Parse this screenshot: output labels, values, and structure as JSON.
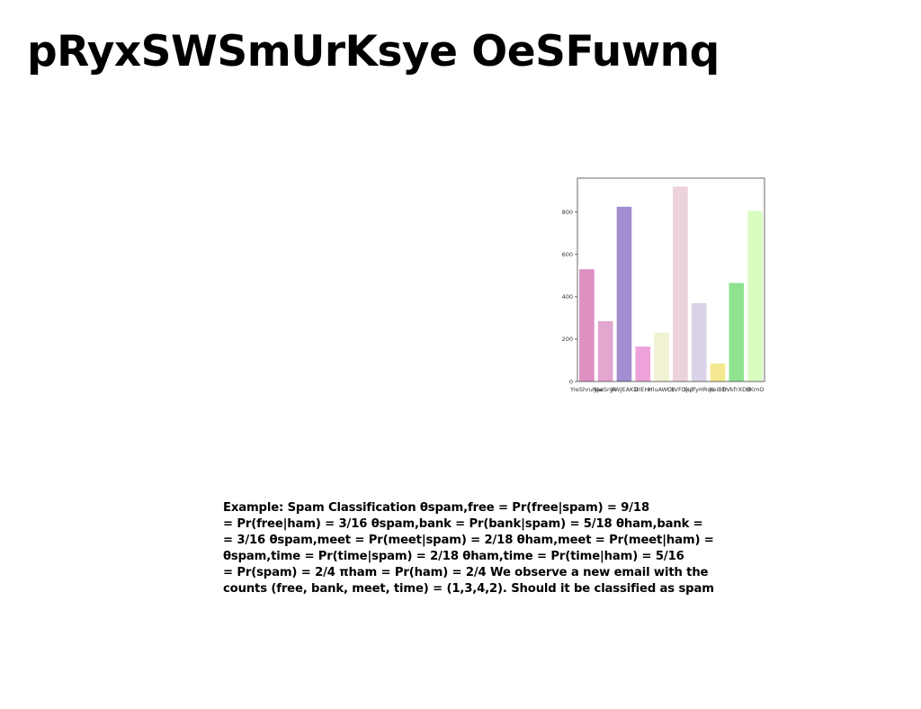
{
  "page": {
    "title": "pRyxSWSmUrKsye OeSFuwnq",
    "body_lines": [
      "Example: Spam Classification θspam,free = Pr(free|spam) = 9/18",
      "= Pr(free|ham) = 3/16 θspam,bank = Pr(bank|spam) = 5/18 θham,bank =",
      "= 3/16 θspam,meet = Pr(meet|spam) = 2/18 θham,meet = Pr(meet|ham) =",
      "θspam,time = Pr(time|spam) = 2/18 θham,time = Pr(time|ham) = 5/16",
      "= Pr(spam) = 2/4 πham = Pr(ham) = 2/4 We observe a new email with the",
      "counts (free, bank, meet, time) = (1,3,4,2). Should it be classified as spam"
    ]
  },
  "chart_data": {
    "type": "bar",
    "categories": [
      "YIeShruNjw",
      "JaeSrgk",
      "XWJEAKD",
      "DIEHr",
      "HluAWCk",
      "OtVFDjuf",
      "tkpfyHRqz",
      "XeIBD",
      "bVkfrXDd",
      "SKmO"
    ],
    "values": [
      530,
      285,
      825,
      165,
      230,
      920,
      370,
      85,
      465,
      805
    ],
    "colors": [
      "#dd8fc2",
      "#e3a6cf",
      "#a18dcf",
      "#eda3d9",
      "#f1f1d3",
      "#ecd2da",
      "#dad2e6",
      "#f3e88f",
      "#8fe28f",
      "#d9fcc0"
    ],
    "yticks": [
      0,
      200,
      400,
      600,
      800
    ],
    "ylim": [
      0,
      960
    ],
    "title": "",
    "xlabel": "",
    "ylabel": "",
    "grid": false,
    "legend": "none"
  }
}
